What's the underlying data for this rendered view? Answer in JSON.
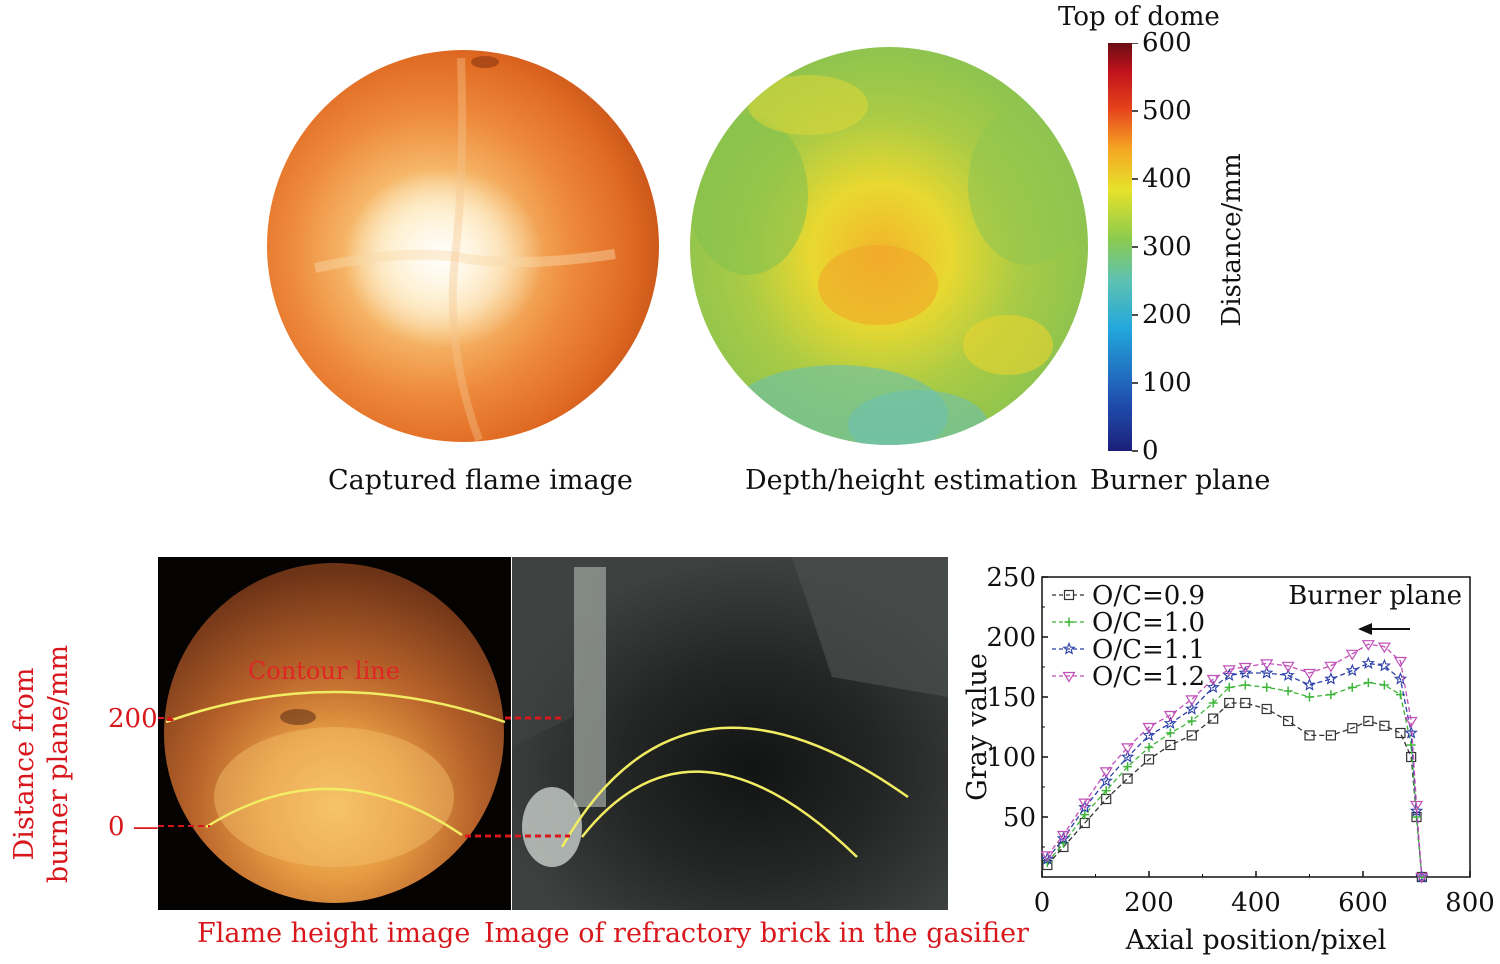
{
  "top": {
    "flame_caption": "Captured flame image",
    "depth_caption": "Depth/height estimation",
    "colorbar": {
      "top_label": "Top of dome",
      "bottom_label": "Burner plane",
      "axis_label": "Distance/mm",
      "ticks": [
        "600",
        "500",
        "400",
        "300",
        "200",
        "100",
        "0"
      ],
      "range": [
        0,
        600
      ],
      "colors": [
        "#1b1f7a",
        "#1f4fb0",
        "#23a7dc",
        "#5ec2b0",
        "#8ccb4e",
        "#e6e22a",
        "#f5a623",
        "#e5421c",
        "#c1121c",
        "#6b0d14"
      ]
    }
  },
  "bottom_left": {
    "y_axis_label_line1": "Distance from",
    "y_axis_label_line2": "burner plane/mm",
    "tick_200": "200 -",
    "tick_0": "0 —",
    "contour_label": "Contour line",
    "flame_caption": "Flame height image",
    "brick_caption": "Image of refractory brick in the gasifier"
  },
  "chart_data": {
    "type": "line",
    "title": "",
    "xlabel": "Axial position/pixel",
    "ylabel": "Gray value",
    "xlim": [
      0,
      800
    ],
    "ylim": [
      0,
      250
    ],
    "xticks": [
      0,
      200,
      400,
      600,
      800
    ],
    "yticks": [
      50,
      100,
      150,
      200,
      250
    ],
    "annotation": "Burner plane",
    "legend_position": "top-left",
    "series": [
      {
        "name": "O/C=0.9",
        "color": "#333333",
        "marker": "square",
        "points": [
          [
            10,
            10
          ],
          [
            40,
            25
          ],
          [
            80,
            45
          ],
          [
            120,
            65
          ],
          [
            160,
            82
          ],
          [
            200,
            98
          ],
          [
            240,
            110
          ],
          [
            280,
            118
          ],
          [
            320,
            132
          ],
          [
            350,
            145
          ],
          [
            380,
            145
          ],
          [
            420,
            140
          ],
          [
            460,
            130
          ],
          [
            500,
            118
          ],
          [
            540,
            118
          ],
          [
            580,
            124
          ],
          [
            610,
            130
          ],
          [
            640,
            126
          ],
          [
            670,
            120
          ],
          [
            690,
            100
          ],
          [
            700,
            50
          ],
          [
            710,
            0
          ]
        ]
      },
      {
        "name": "O/C=1.0",
        "color": "#3fb53a",
        "marker": "plus",
        "points": [
          [
            10,
            12
          ],
          [
            40,
            28
          ],
          [
            80,
            52
          ],
          [
            120,
            72
          ],
          [
            160,
            92
          ],
          [
            200,
            108
          ],
          [
            240,
            120
          ],
          [
            280,
            130
          ],
          [
            320,
            145
          ],
          [
            350,
            158
          ],
          [
            380,
            160
          ],
          [
            420,
            158
          ],
          [
            460,
            155
          ],
          [
            500,
            150
          ],
          [
            540,
            152
          ],
          [
            580,
            158
          ],
          [
            610,
            162
          ],
          [
            640,
            160
          ],
          [
            670,
            152
          ],
          [
            690,
            110
          ],
          [
            700,
            50
          ],
          [
            710,
            0
          ]
        ]
      },
      {
        "name": "O/C=1.1",
        "color": "#2b3fa8",
        "marker": "star",
        "points": [
          [
            10,
            15
          ],
          [
            40,
            32
          ],
          [
            80,
            58
          ],
          [
            120,
            80
          ],
          [
            160,
            100
          ],
          [
            200,
            118
          ],
          [
            240,
            128
          ],
          [
            280,
            140
          ],
          [
            320,
            158
          ],
          [
            350,
            168
          ],
          [
            380,
            170
          ],
          [
            420,
            170
          ],
          [
            460,
            168
          ],
          [
            500,
            160
          ],
          [
            540,
            165
          ],
          [
            580,
            172
          ],
          [
            610,
            178
          ],
          [
            640,
            176
          ],
          [
            670,
            165
          ],
          [
            690,
            120
          ],
          [
            700,
            55
          ],
          [
            710,
            0
          ]
        ]
      },
      {
        "name": "O/C=1.2",
        "color": "#c050b8",
        "marker": "triangle-down",
        "points": [
          [
            10,
            18
          ],
          [
            40,
            35
          ],
          [
            80,
            62
          ],
          [
            120,
            88
          ],
          [
            160,
            108
          ],
          [
            200,
            125
          ],
          [
            240,
            135
          ],
          [
            280,
            148
          ],
          [
            320,
            165
          ],
          [
            350,
            173
          ],
          [
            380,
            175
          ],
          [
            420,
            178
          ],
          [
            460,
            176
          ],
          [
            500,
            170
          ],
          [
            540,
            176
          ],
          [
            580,
            186
          ],
          [
            610,
            194
          ],
          [
            640,
            192
          ],
          [
            670,
            180
          ],
          [
            690,
            130
          ],
          [
            700,
            60
          ],
          [
            710,
            0
          ]
        ]
      }
    ]
  }
}
